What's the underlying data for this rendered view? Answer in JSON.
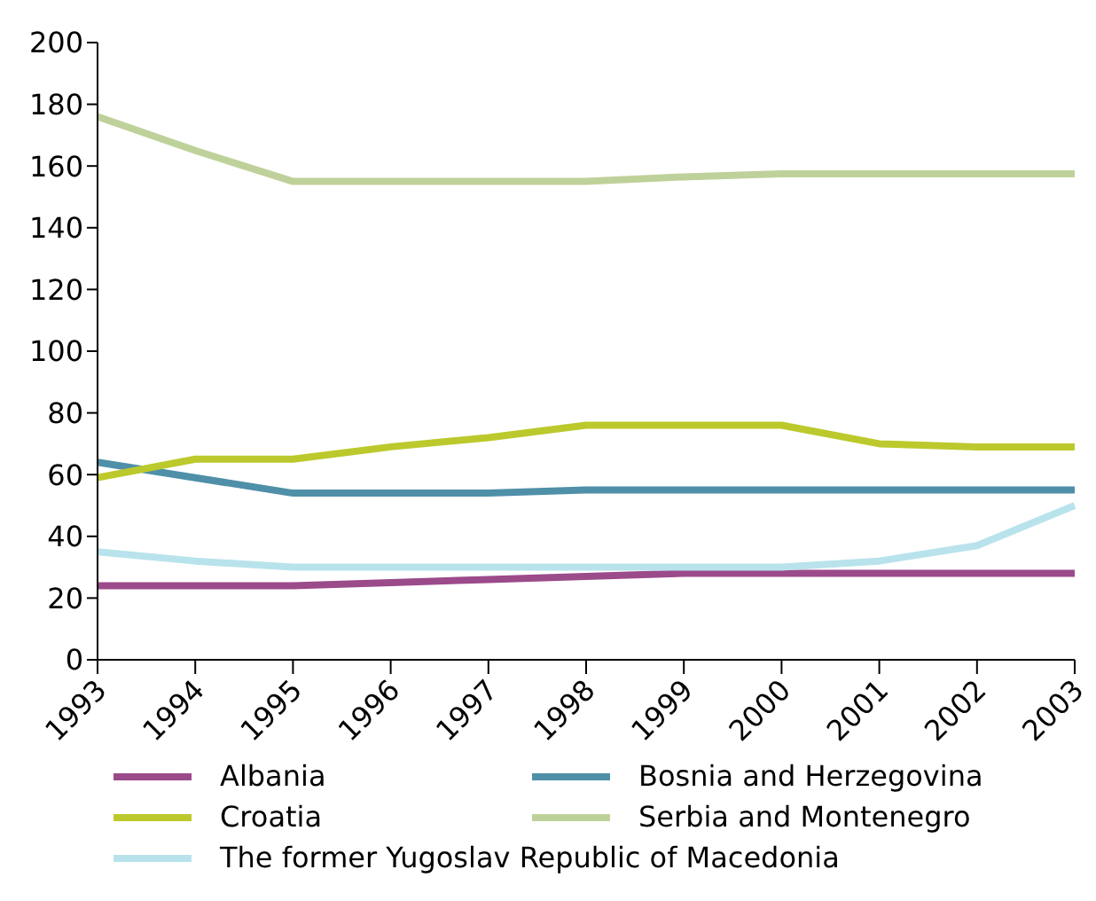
{
  "chart_data": {
    "type": "line",
    "categories": [
      "1993",
      "1994",
      "1995",
      "1996",
      "1997",
      "1998",
      "1999",
      "2000",
      "2001",
      "2002",
      "2003"
    ],
    "series": [
      {
        "name": "Albania",
        "color": "#9b4a8a",
        "values": [
          24,
          24,
          24,
          25,
          26,
          27,
          28,
          28,
          28,
          28,
          28
        ]
      },
      {
        "name": "Bosnia and Herzegovina",
        "color": "#4f8fa8",
        "values": [
          64,
          59,
          54,
          54,
          54,
          55,
          55,
          55,
          55,
          55,
          55
        ]
      },
      {
        "name": "Croatia",
        "color": "#bcc92c",
        "values": [
          59,
          65,
          65,
          69,
          72,
          76,
          76,
          76,
          70,
          69,
          69
        ]
      },
      {
        "name": "Serbia and Montenegro",
        "color": "#bfd19a",
        "values": [
          176,
          165,
          155,
          155,
          155,
          155,
          156.5,
          157.5,
          157.5,
          157.5,
          157.5
        ]
      },
      {
        "name": "The former Yugoslav Republic of Macedonia",
        "color": "#b9e3ec",
        "values": [
          35,
          32,
          30,
          30,
          30,
          30,
          30,
          30,
          32,
          37,
          50
        ]
      }
    ],
    "ylim": [
      0,
      200
    ],
    "yticks": [
      0,
      20,
      40,
      60,
      80,
      100,
      120,
      140,
      160,
      180,
      200
    ],
    "grid": false,
    "legend": "bottom",
    "marker": "none",
    "line_style": "solid"
  }
}
